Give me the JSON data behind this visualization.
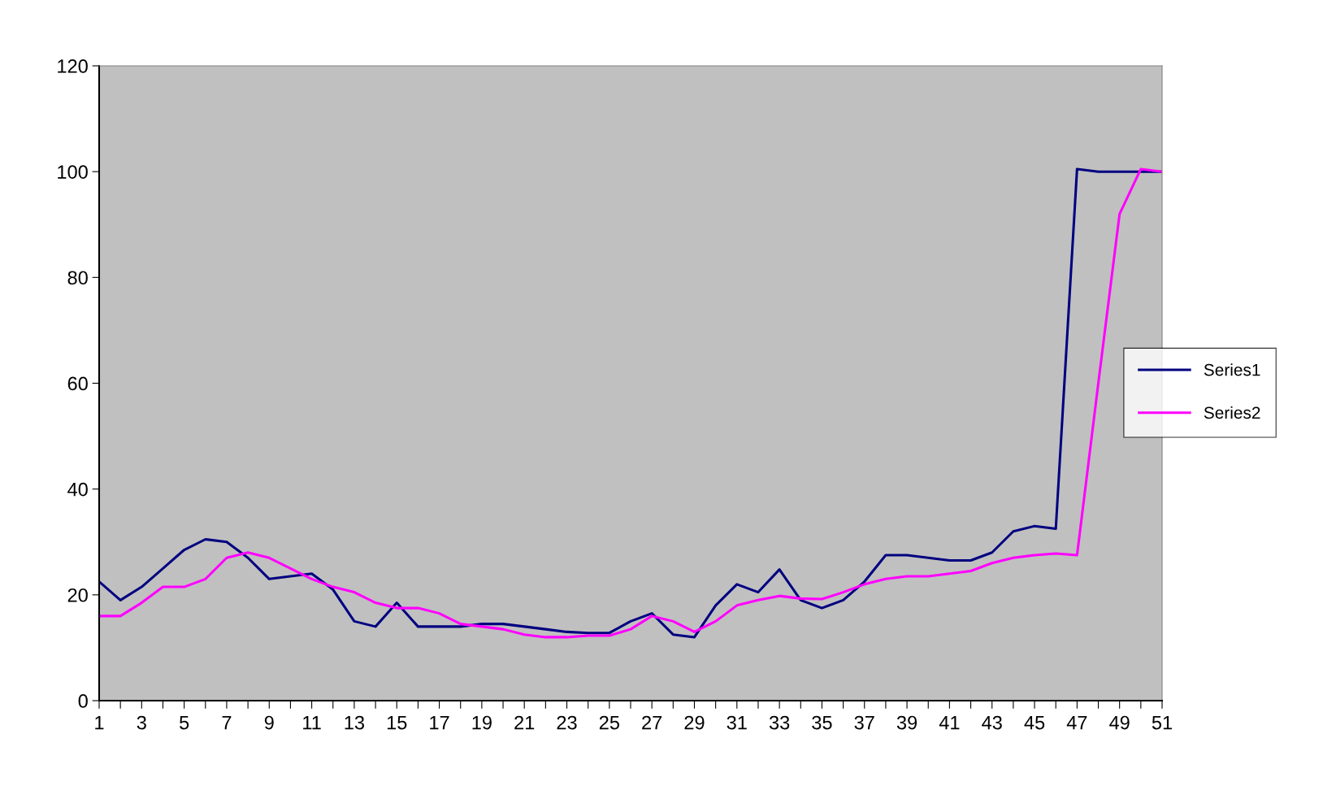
{
  "chart_data": {
    "type": "line",
    "categories": [
      "1",
      null,
      "3",
      null,
      "5",
      null,
      "7",
      null,
      "9",
      null,
      "11",
      null,
      "13",
      null,
      "15",
      null,
      "17",
      null,
      "19",
      null,
      "21",
      null,
      "23",
      null,
      "25",
      null,
      "27",
      null,
      "29",
      null,
      "31",
      null,
      "33",
      null,
      "35",
      null,
      "37",
      null,
      "39",
      null,
      "41",
      null,
      "43",
      null,
      "45",
      null,
      "47",
      null,
      "49",
      null,
      "51"
    ],
    "series": [
      {
        "name": "Series1",
        "color": "#000080",
        "values": [
          22.5,
          19,
          21.5,
          25,
          28.5,
          30.5,
          30,
          27,
          23,
          23.5,
          24,
          21,
          15,
          14,
          18.5,
          14,
          14,
          14,
          14.5,
          14.5,
          14,
          13.5,
          13,
          12.8,
          12.8,
          15,
          16.5,
          12.5,
          12,
          18,
          22,
          20.5,
          24.8,
          19,
          17.5,
          19,
          22.5,
          27.5,
          27.5,
          27,
          26.5,
          26.5,
          28,
          32,
          33,
          32.5,
          100.5,
          100,
          100,
          100,
          100
        ]
      },
      {
        "name": "Series2",
        "color": "#ff00ff",
        "values": [
          16,
          16,
          18.5,
          21.5,
          21.5,
          23,
          27,
          28,
          27,
          25,
          23,
          21.5,
          20.5,
          18.5,
          17.5,
          17.5,
          16.5,
          14.5,
          14,
          13.5,
          12.5,
          12,
          12,
          12.3,
          12.3,
          13.5,
          16,
          15,
          13,
          15,
          18,
          19,
          19.8,
          19.3,
          19.2,
          20.5,
          22,
          23,
          23.5,
          23.5,
          24,
          24.5,
          26,
          27,
          27.5,
          27.8,
          27.5,
          60,
          92,
          100.5,
          100
        ]
      }
    ],
    "ylim": [
      0,
      120
    ],
    "yticks": [
      0,
      20,
      40,
      60,
      80,
      100,
      120
    ],
    "grid": false,
    "legend": "right",
    "marker": "none",
    "line_style": "solid"
  }
}
